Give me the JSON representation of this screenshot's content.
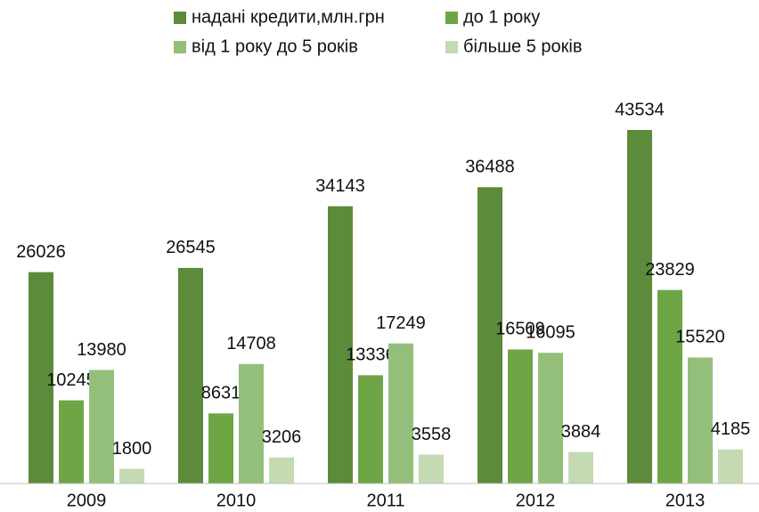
{
  "chart_data": {
    "type": "bar",
    "categories": [
      "2009",
      "2010",
      "2011",
      "2012",
      "2013"
    ],
    "series": [
      {
        "name": "надані кредити,млн.грн",
        "color": "#5b8b3b",
        "values": [
          26026,
          26545,
          34143,
          36488,
          43534
        ]
      },
      {
        "name": "до 1 року",
        "color": "#6ea646",
        "values": [
          10245,
          8631,
          13336,
          16509,
          23829
        ]
      },
      {
        "name": "від 1 року до 5 років",
        "color": "#94bf7a",
        "values": [
          13980,
          14708,
          17249,
          16095,
          15520
        ]
      },
      {
        "name": "більше 5 років",
        "color": "#c3dab3",
        "values": [
          1800,
          3206,
          3558,
          3884,
          4185
        ]
      }
    ],
    "ylim": [
      0,
      50000
    ],
    "legend": "top"
  }
}
